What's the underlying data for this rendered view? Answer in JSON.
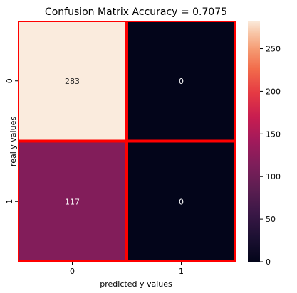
{
  "chart_data": {
    "type": "heatmap",
    "title": "Confusion Matrix Accuracy = 0.7075",
    "xlabel": "predicted y values",
    "ylabel": "real y values",
    "x_categories": [
      "0",
      "1"
    ],
    "y_categories": [
      "0",
      "1"
    ],
    "values": [
      [
        283,
        0
      ],
      [
        117,
        0
      ]
    ],
    "annotations": [
      [
        "283",
        "0"
      ],
      [
        "117",
        "0"
      ]
    ],
    "colorbar": {
      "min": 0,
      "max": 283,
      "ticks": [
        "0",
        "50",
        "100",
        "150",
        "200",
        "250"
      ],
      "tick_values": [
        0,
        50,
        100,
        150,
        200,
        250
      ],
      "colormap": "rocket"
    },
    "cell_border_color": "#ff0000",
    "annotation_colors": {
      "light_cell": "#262626",
      "dark_cell": "#ffffff"
    }
  }
}
